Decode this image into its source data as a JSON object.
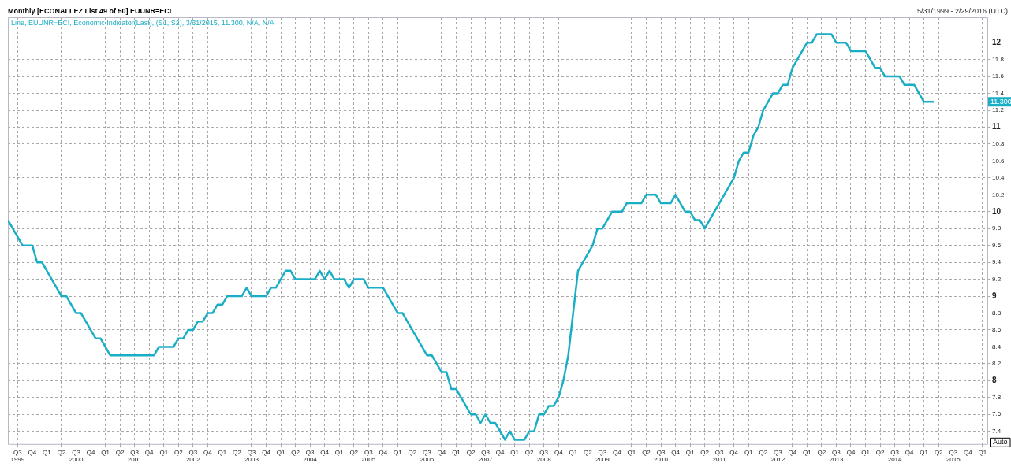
{
  "chart_data": {
    "type": "line",
    "title": "Monthly [ECONALLEZ List 49 of 50] EUUNR=ECI",
    "subtitle": "5/31/1999 - 2/29/2016 (UTC)",
    "series": [
      {
        "name": "Line, EUUNR=ECI, Economic Indicator(Last), (S1, S2), 3/31/2015, 11.300, N/A, N/A",
        "color": "#1aaec6",
        "x": [
          "1999-05",
          "1999-06",
          "1999-08",
          "1999-10",
          "1999-11",
          "1999-12",
          "2000-04",
          "2000-05",
          "2000-07",
          "2000-08",
          "2000-11",
          "2000-12",
          "2001-02",
          "2001-11",
          "2001-12",
          "2002-03",
          "2002-04",
          "2002-05",
          "2002-06",
          "2002-07",
          "2002-08",
          "2002-09",
          "2002-10",
          "2002-11",
          "2002-12",
          "2003-01",
          "2003-02",
          "2003-05",
          "2003-06",
          "2003-07",
          "2003-10",
          "2003-11",
          "2003-12",
          "2004-02",
          "2004-03",
          "2004-04",
          "2004-08",
          "2004-09",
          "2004-10",
          "2004-11",
          "2004-12",
          "2005-02",
          "2005-03",
          "2005-04",
          "2005-06",
          "2005-07",
          "2005-10",
          "2006-01",
          "2006-02",
          "2006-07",
          "2006-08",
          "2006-10",
          "2006-11",
          "2006-12",
          "2007-01",
          "2007-04",
          "2007-05",
          "2007-06",
          "2007-07",
          "2007-08",
          "2007-09",
          "2007-11",
          "2007-12",
          "2008-01",
          "2008-03",
          "2008-04",
          "2008-05",
          "2008-06",
          "2008-07",
          "2008-08",
          "2008-09",
          "2008-10",
          "2008-11",
          "2008-12",
          "2009-01",
          "2009-02",
          "2009-03",
          "2009-05",
          "2009-06",
          "2009-07",
          "2009-09",
          "2009-11",
          "2009-12",
          "2010-03",
          "2010-04",
          "2010-06",
          "2010-07",
          "2010-09",
          "2010-10",
          "2010-12",
          "2011-01",
          "2011-02",
          "2011-03",
          "2011-04",
          "2011-10",
          "2011-11",
          "2011-12",
          "2012-01",
          "2012-02",
          "2012-03",
          "2012-04",
          "2012-05",
          "2012-06",
          "2012-07",
          "2012-08",
          "2012-09",
          "2012-10",
          "2012-11",
          "2012-12",
          "2013-01",
          "2013-02",
          "2013-03",
          "2013-06",
          "2013-07",
          "2013-09",
          "2013-10",
          "2014-01",
          "2014-02",
          "2014-03",
          "2014-04",
          "2014-05",
          "2014-08",
          "2014-09",
          "2014-11",
          "2014-12",
          "2015-01",
          "2015-03"
        ],
        "values": [
          9.9,
          9.8,
          9.6,
          9.6,
          9.4,
          9.4,
          9.0,
          9.0,
          8.8,
          8.8,
          8.5,
          8.5,
          8.3,
          8.3,
          8.4,
          8.4,
          8.5,
          8.5,
          8.6,
          8.6,
          8.7,
          8.7,
          8.8,
          8.8,
          8.9,
          8.9,
          9.0,
          9.0,
          9.1,
          9.0,
          9.0,
          9.1,
          9.1,
          9.3,
          9.3,
          9.2,
          9.2,
          9.3,
          9.2,
          9.3,
          9.2,
          9.2,
          9.1,
          9.2,
          9.2,
          9.1,
          9.1,
          8.8,
          8.8,
          8.3,
          8.3,
          8.1,
          8.1,
          7.9,
          7.9,
          7.6,
          7.6,
          7.5,
          7.6,
          7.5,
          7.5,
          7.3,
          7.4,
          7.3,
          7.3,
          7.4,
          7.4,
          7.6,
          7.6,
          7.7,
          7.7,
          7.8,
          8.0,
          8.3,
          8.8,
          9.3,
          9.4,
          9.6,
          9.8,
          9.8,
          10.0,
          10.0,
          10.1,
          10.1,
          10.2,
          10.2,
          10.1,
          10.1,
          10.2,
          10.0,
          10.0,
          9.9,
          9.9,
          9.8,
          10.4,
          10.6,
          10.7,
          10.7,
          10.9,
          11.0,
          11.2,
          11.3,
          11.4,
          11.4,
          11.5,
          11.5,
          11.7,
          11.8,
          11.9,
          12.0,
          12.0,
          12.1,
          12.1,
          12.0,
          12.0,
          11.9,
          11.9,
          11.8,
          11.7,
          11.7,
          11.6,
          11.6,
          11.5,
          11.5,
          11.4,
          11.3,
          11.3
        ]
      }
    ],
    "xlim": [
      "1999-05",
      "2016-02"
    ],
    "xticks": [
      {
        "value": "1999-07",
        "label": "Q3\n1999"
      },
      {
        "value": "1999-10",
        "label": "Q4"
      },
      {
        "value": "2000-01",
        "label": "Q1"
      },
      {
        "value": "2000-04",
        "label": "Q2"
      },
      {
        "value": "2000-07",
        "label": "Q3\n2000"
      },
      {
        "value": "2000-10",
        "label": "Q4"
      },
      {
        "value": "2001-01",
        "label": "Q1"
      },
      {
        "value": "2001-04",
        "label": "Q2"
      },
      {
        "value": "2001-07",
        "label": "Q3\n2001"
      },
      {
        "value": "2001-10",
        "label": "Q4"
      },
      {
        "value": "2002-01",
        "label": "Q1"
      },
      {
        "value": "2002-04",
        "label": "Q2"
      },
      {
        "value": "2002-07",
        "label": "Q3\n2002"
      },
      {
        "value": "2002-10",
        "label": "Q4"
      },
      {
        "value": "2003-01",
        "label": "Q1"
      },
      {
        "value": "2003-04",
        "label": "Q2"
      },
      {
        "value": "2003-07",
        "label": "Q3\n2003"
      },
      {
        "value": "2003-10",
        "label": "Q4"
      },
      {
        "value": "2004-01",
        "label": "Q1"
      },
      {
        "value": "2004-04",
        "label": "Q2"
      },
      {
        "value": "2004-07",
        "label": "Q3\n2004"
      },
      {
        "value": "2004-10",
        "label": "Q4"
      },
      {
        "value": "2005-01",
        "label": "Q1"
      },
      {
        "value": "2005-04",
        "label": "Q2"
      },
      {
        "value": "2005-07",
        "label": "Q3\n2005"
      },
      {
        "value": "2005-10",
        "label": "Q4"
      },
      {
        "value": "2006-01",
        "label": "Q1"
      },
      {
        "value": "2006-04",
        "label": "Q2"
      },
      {
        "value": "2006-07",
        "label": "Q3\n2006"
      },
      {
        "value": "2006-10",
        "label": "Q4"
      },
      {
        "value": "2007-01",
        "label": "Q1"
      },
      {
        "value": "2007-04",
        "label": "Q2"
      },
      {
        "value": "2007-07",
        "label": "Q3\n2007"
      },
      {
        "value": "2007-10",
        "label": "Q4"
      },
      {
        "value": "2008-01",
        "label": "Q1"
      },
      {
        "value": "2008-04",
        "label": "Q2"
      },
      {
        "value": "2008-07",
        "label": "Q3\n2008"
      },
      {
        "value": "2008-10",
        "label": "Q4"
      },
      {
        "value": "2009-01",
        "label": "Q1"
      },
      {
        "value": "2009-04",
        "label": "Q2"
      },
      {
        "value": "2009-07",
        "label": "Q3\n2009"
      },
      {
        "value": "2009-10",
        "label": "Q4"
      },
      {
        "value": "2010-01",
        "label": "Q1"
      },
      {
        "value": "2010-04",
        "label": "Q2"
      },
      {
        "value": "2010-07",
        "label": "Q3\n2010"
      },
      {
        "value": "2010-10",
        "label": "Q4"
      },
      {
        "value": "2011-01",
        "label": "Q1"
      },
      {
        "value": "2011-04",
        "label": "Q2"
      },
      {
        "value": "2011-07",
        "label": "Q3\n2011"
      },
      {
        "value": "2011-10",
        "label": "Q4"
      },
      {
        "value": "2012-01",
        "label": "Q1"
      },
      {
        "value": "2012-04",
        "label": "Q2"
      },
      {
        "value": "2012-07",
        "label": "Q3\n2012"
      },
      {
        "value": "2012-10",
        "label": "Q4"
      },
      {
        "value": "2013-01",
        "label": "Q1"
      },
      {
        "value": "2013-04",
        "label": "Q2"
      },
      {
        "value": "2013-07",
        "label": "Q3\n2013"
      },
      {
        "value": "2013-10",
        "label": "Q4"
      },
      {
        "value": "2014-01",
        "label": "Q1"
      },
      {
        "value": "2014-04",
        "label": "Q2"
      },
      {
        "value": "2014-07",
        "label": "Q3\n2014"
      },
      {
        "value": "2014-10",
        "label": "Q4"
      },
      {
        "value": "2015-01",
        "label": "Q1"
      },
      {
        "value": "2015-04",
        "label": "Q2"
      },
      {
        "value": "2015-07",
        "label": "Q3\n2015"
      },
      {
        "value": "2015-10",
        "label": "Q4"
      },
      {
        "value": "2016-01",
        "label": "Q1"
      }
    ],
    "ylim": [
      7.25,
      12.3
    ],
    "yticks": [
      7.4,
      7.6,
      7.8,
      8,
      8.2,
      8.4,
      8.6,
      8.8,
      9,
      9.2,
      9.4,
      9.6,
      9.8,
      10,
      10.2,
      10.4,
      10.6,
      10.8,
      11,
      11.2,
      11.4,
      11.6,
      11.8,
      12
    ],
    "annotations": [
      "11.300",
      "Auto"
    ],
    "grid": true,
    "legend": "top left",
    "marker": "none",
    "line_style": "solid"
  }
}
